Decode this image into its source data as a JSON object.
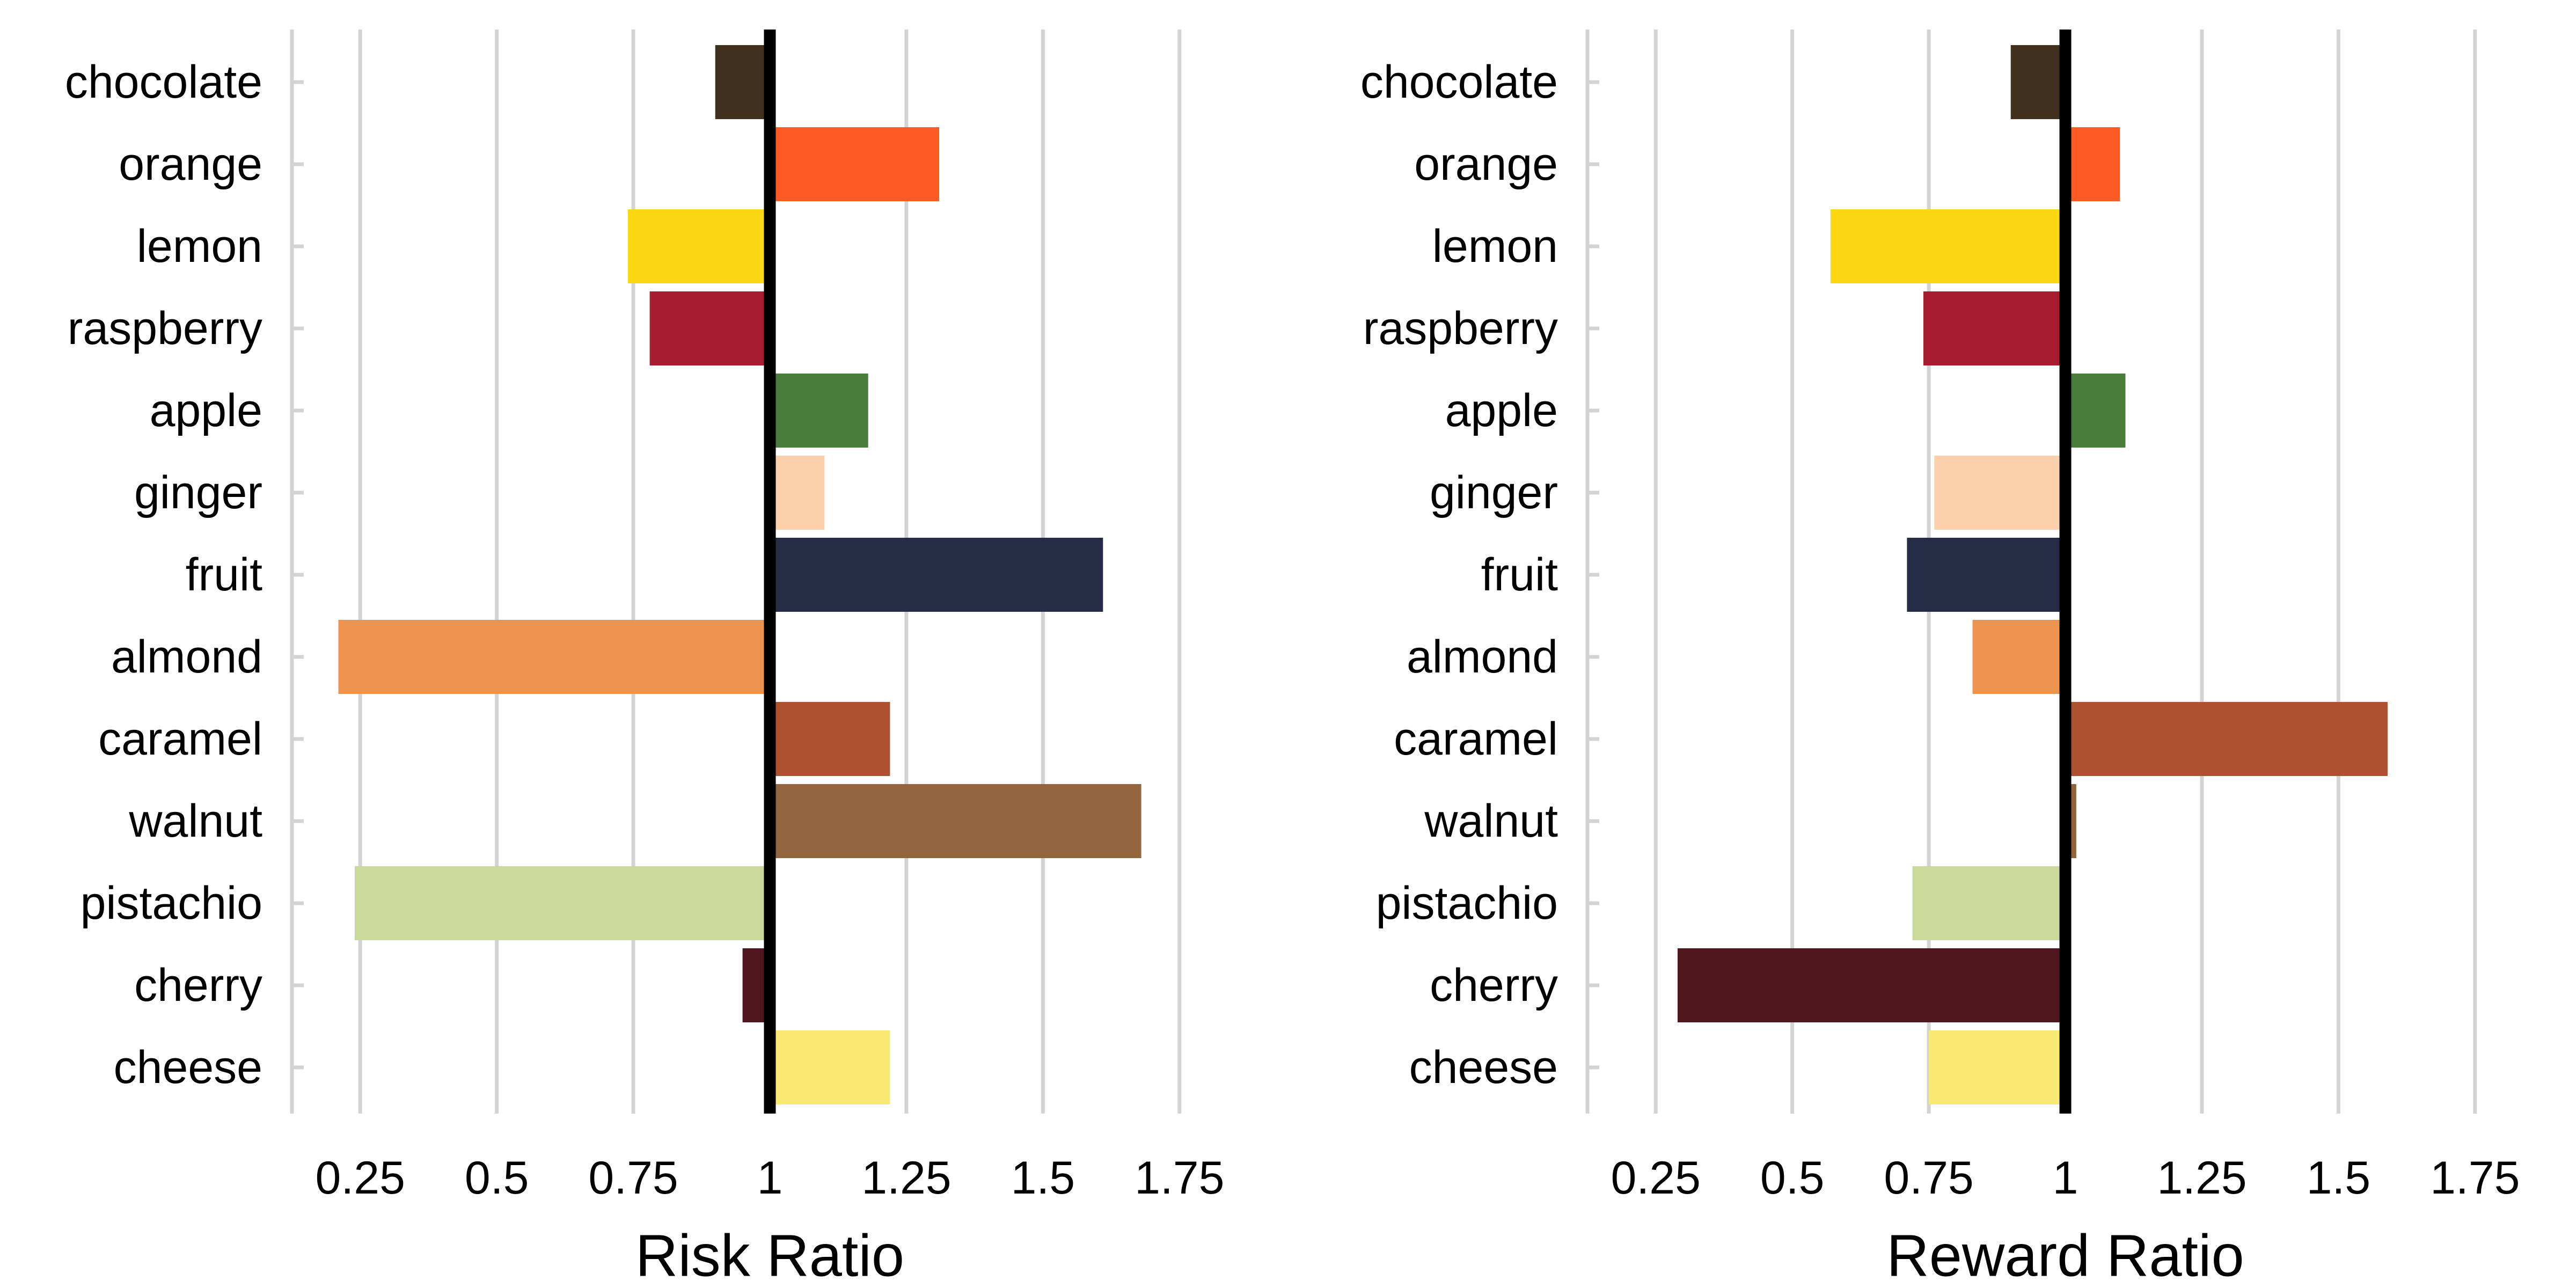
{
  "chart_data": [
    {
      "type": "bar",
      "orientation": "horizontal",
      "baseline": 1,
      "xlabel": "Risk Ratio",
      "ylabel": "",
      "xlim": [
        0.125,
        1.875
      ],
      "xticks": [
        0.25,
        0.5,
        0.75,
        1,
        1.25,
        1.5,
        1.75
      ],
      "xtick_labels": [
        "0.25",
        "0.5",
        "0.75",
        "1",
        "1.25",
        "1.5",
        "1.75"
      ],
      "grid": "vertical",
      "categories": [
        "chocolate",
        "orange",
        "lemon",
        "raspberry",
        "apple",
        "ginger",
        "fruit",
        "almond",
        "caramel",
        "walnut",
        "pistachio",
        "cherry",
        "cheese"
      ],
      "values": [
        0.9,
        1.31,
        0.74,
        0.78,
        1.18,
        1.1,
        1.61,
        0.21,
        1.22,
        1.68,
        0.24,
        0.95,
        1.22
      ]
    },
    {
      "type": "bar",
      "orientation": "horizontal",
      "baseline": 1,
      "xlabel": "Reward Ratio",
      "ylabel": "",
      "xlim": [
        0.125,
        1.875
      ],
      "xticks": [
        0.25,
        0.5,
        0.75,
        1,
        1.25,
        1.5,
        1.75
      ],
      "xtick_labels": [
        "0.25",
        "0.5",
        "0.75",
        "1",
        "1.25",
        "1.5",
        "1.75"
      ],
      "grid": "vertical",
      "categories": [
        "chocolate",
        "orange",
        "lemon",
        "raspberry",
        "apple",
        "ginger",
        "fruit",
        "almond",
        "caramel",
        "walnut",
        "pistachio",
        "cherry",
        "cheese"
      ],
      "values": [
        0.9,
        1.1,
        0.57,
        0.74,
        1.11,
        0.76,
        0.71,
        0.83,
        1.59,
        1.02,
        0.72,
        0.29,
        0.75
      ]
    }
  ],
  "colors": {
    "chocolate": "#42301e",
    "orange": "#ff5a24",
    "lemon": "#fcd714",
    "raspberry": "#a81c30",
    "apple": "#497c3a",
    "ginger": "#fcd0aa",
    "fruit": "#272c46",
    "almond": "#ec944f",
    "caramel": "#ae5130",
    "walnut": "#93653c",
    "pistachio": "#c9d99a",
    "cherry": "#4e1720",
    "cheese": "#f8e975",
    "gridline": "#d3d3d3",
    "baseline": "#000000"
  }
}
